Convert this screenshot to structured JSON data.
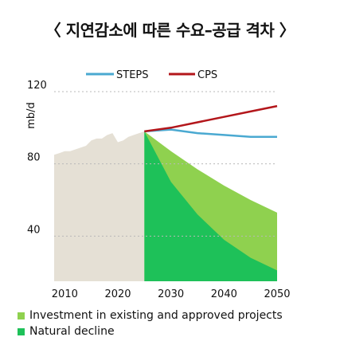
{
  "title": "〈 지연감소에 따른 수요–공급 격차 〉",
  "colors": {
    "historical": "#e5e0d5",
    "investment": "#8fd14f",
    "natural_decline": "#1ec159",
    "steps": "#4aa9d1",
    "cps": "#b3161b",
    "grid": "#b8b8b8"
  },
  "chart_data": {
    "type": "area",
    "ylabel": "mb/d",
    "xlim": [
      2008,
      2050
    ],
    "ylim": [
      15,
      120
    ],
    "xticks": [
      2010,
      2020,
      2030,
      2040,
      2050
    ],
    "yticks": [
      40,
      80,
      120
    ],
    "grid": "horizontal dotted",
    "legend_top": [
      "STEPS",
      "CPS"
    ],
    "legend_bottom": [
      "Investment in existing and approved projects",
      "Natural decline"
    ],
    "historical": {
      "x": [
        2008,
        2009,
        2010,
        2011,
        2012,
        2013,
        2014,
        2015,
        2016,
        2017,
        2018,
        2019,
        2020,
        2021,
        2022,
        2023,
        2024,
        2025
      ],
      "y": [
        85,
        86,
        87,
        87,
        88,
        89,
        90,
        93,
        94,
        94,
        96,
        97,
        92,
        93,
        95,
        96,
        97,
        98
      ]
    },
    "series": [
      {
        "name": "STEPS",
        "x": [
          2025,
          2030,
          2035,
          2040,
          2045,
          2050
        ],
        "y": [
          98,
          99,
          97,
          96,
          95,
          95
        ]
      },
      {
        "name": "CPS",
        "x": [
          2025,
          2030,
          2035,
          2040,
          2045,
          2050
        ],
        "y": [
          98,
          100,
          103,
          106,
          109,
          112
        ]
      },
      {
        "name": "Investment in existing and approved projects",
        "x": [
          2025,
          2030,
          2035,
          2040,
          2045,
          2050
        ],
        "y": [
          98,
          87,
          77,
          68,
          60,
          53
        ]
      },
      {
        "name": "Natural decline",
        "x": [
          2025,
          2030,
          2035,
          2040,
          2045,
          2050
        ],
        "y": [
          98,
          70,
          52,
          38,
          28,
          21
        ]
      }
    ]
  }
}
